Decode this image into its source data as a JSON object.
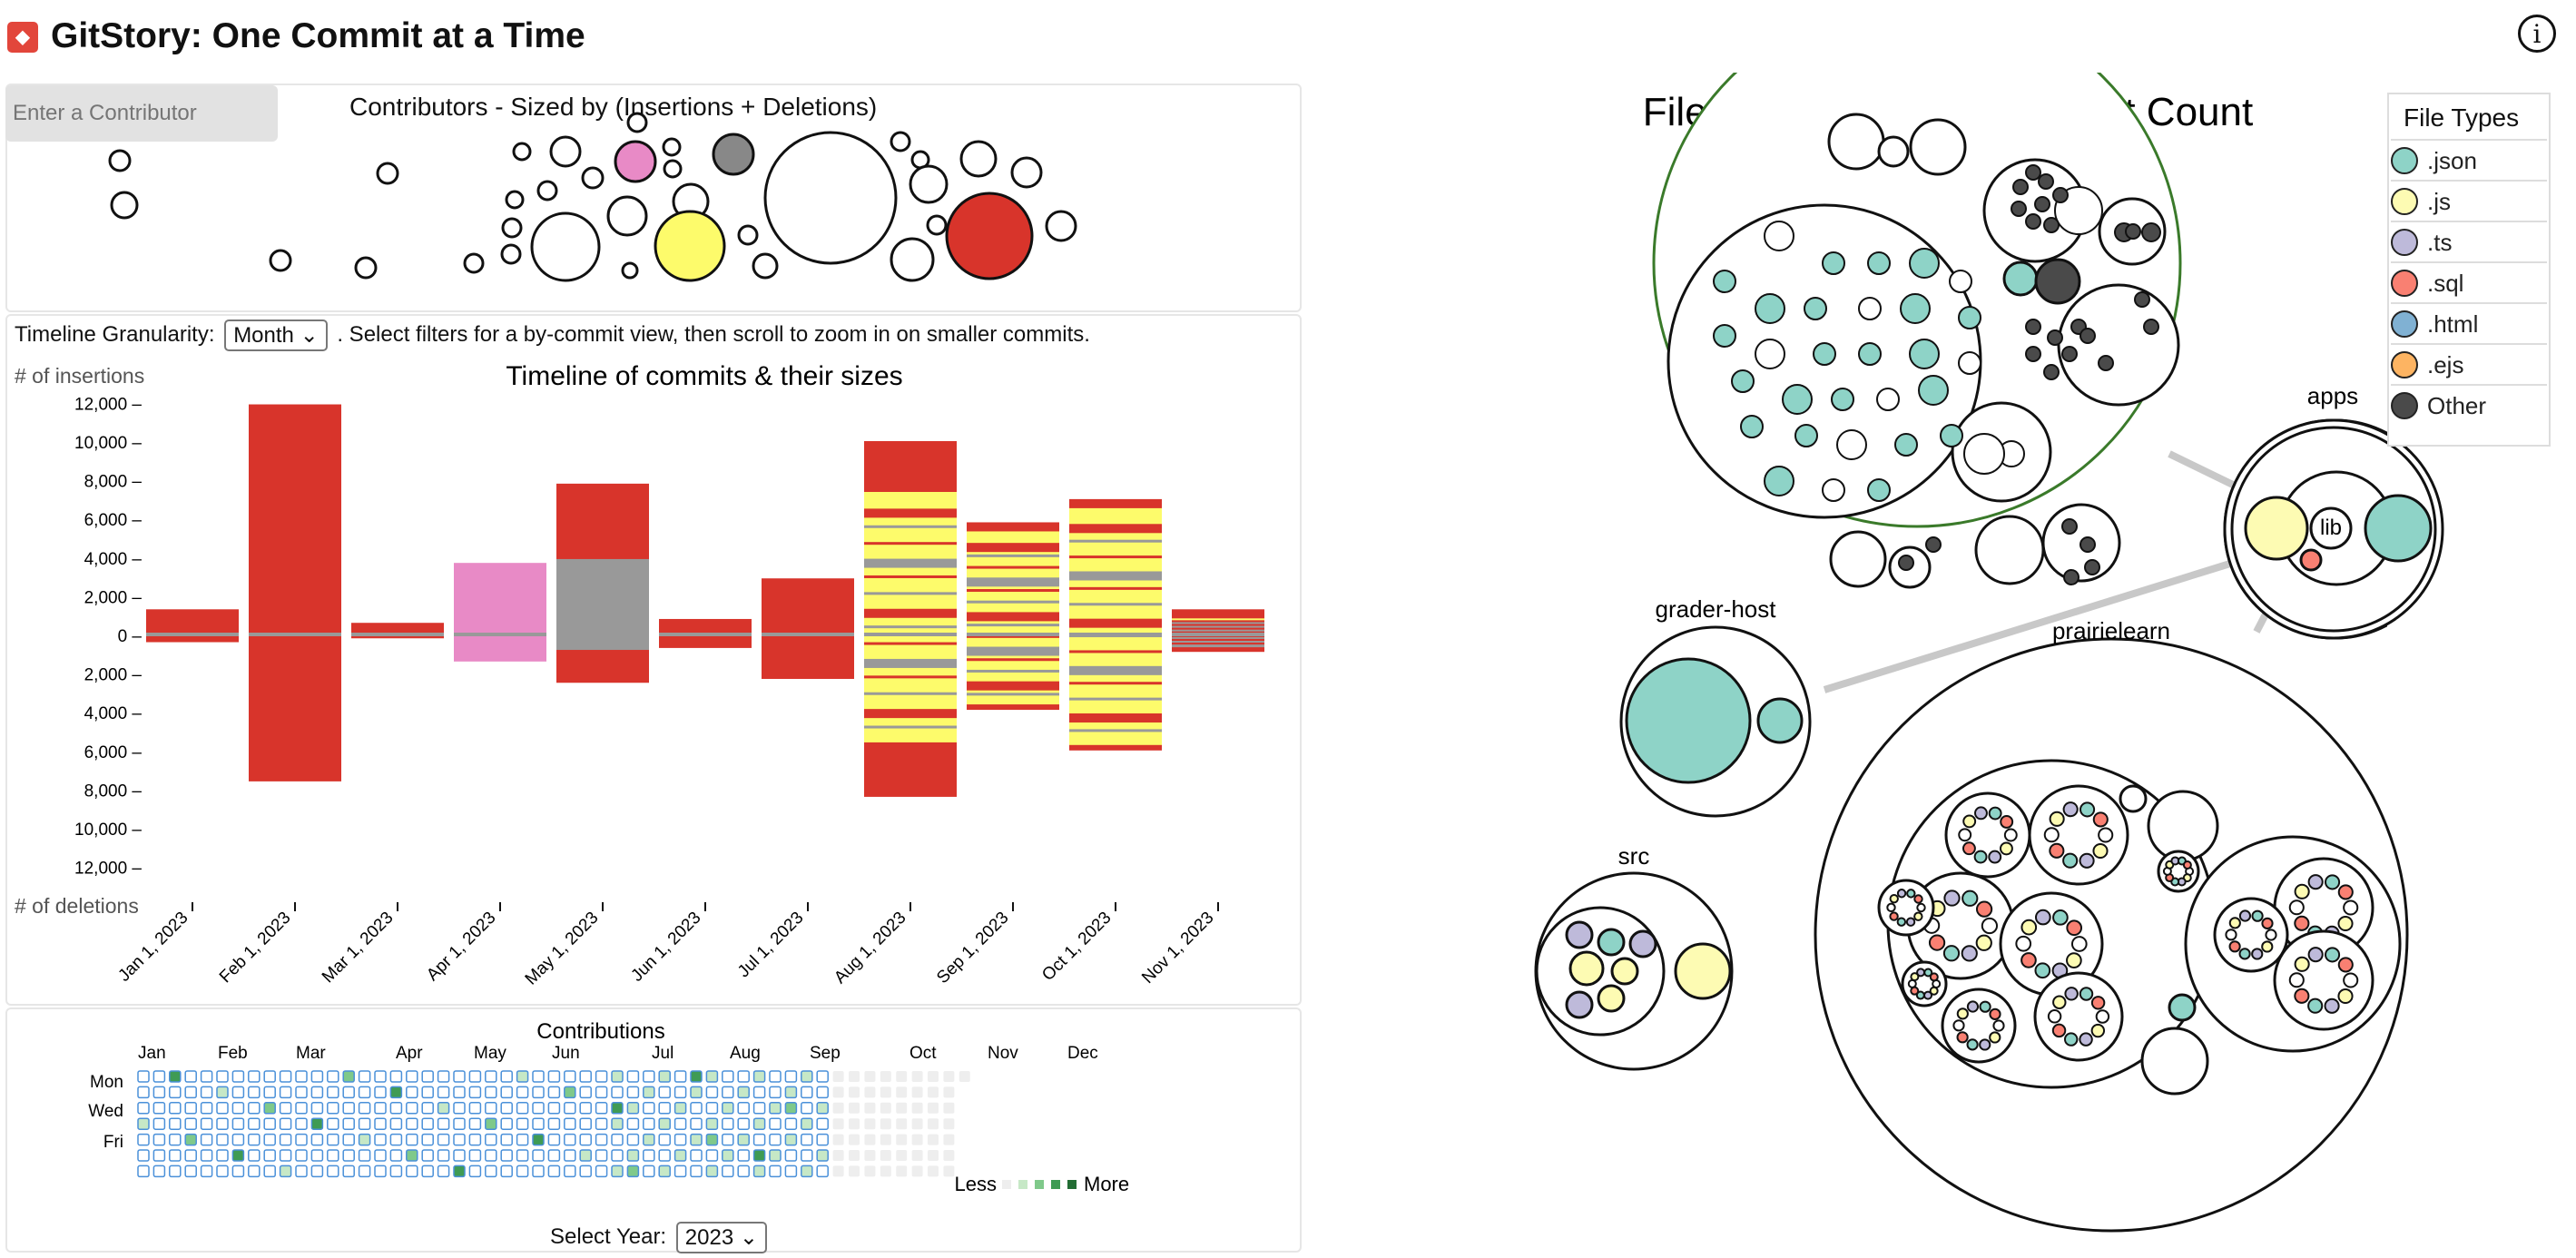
{
  "app": {
    "title": "GitStory: One Commit at a Time",
    "logo_icon": "git-logo-icon",
    "info_icon": "info-icon",
    "info_glyph": "i"
  },
  "contributors": {
    "input_placeholder": "Enter a Contributor",
    "title": "Contributors - Sized by (Insertions + Deletions)"
  },
  "timeline": {
    "granularity_label": "Timeline Granularity:",
    "granularity_value": "Month",
    "instructions": ". Select filters for a by-commit view, then scroll to zoom in on smaller commits."
  },
  "chart_data": {
    "type": "bar",
    "title": "Timeline of commits & their sizes",
    "ylabel_top": "# of insertions",
    "ylabel_bottom": "# of deletions",
    "categories": [
      "Jan 1, 2023",
      "Feb 1, 2023",
      "Mar 1, 2023",
      "Apr 1, 2023",
      "May 1, 2023",
      "Jun 1, 2023",
      "Jul 1, 2023",
      "Aug 1, 2023",
      "Sep 1, 2023",
      "Oct 1, 2023",
      "Nov 1, 2023"
    ],
    "y_ticks": [
      "12,000",
      "10,000",
      "8,000",
      "6,000",
      "4,000",
      "2,000",
      "0",
      "2,000",
      "4,000",
      "6,000",
      "8,000",
      "10,000",
      "12,000"
    ],
    "ylim": [
      -12000,
      12000
    ],
    "insertions": [
      1300,
      11900,
      600,
      3700,
      7800,
      800,
      2900,
      10000,
      5800,
      7000,
      1300
    ],
    "deletions": [
      400,
      7600,
      200,
      1400,
      2500,
      700,
      2300,
      8400,
      3900,
      6000,
      900
    ],
    "colors": {
      "red": "#d8342b",
      "yellow": "#fdfb6b",
      "pink": "#e88ac6",
      "gray": "#999999"
    }
  },
  "calendar": {
    "title": "Contributions",
    "months": [
      "Jan",
      "Feb",
      "Mar",
      "Apr",
      "May",
      "Jun",
      "Jul",
      "Aug",
      "Sep",
      "Oct",
      "Nov",
      "Dec"
    ],
    "days": [
      "Mon",
      "Wed",
      "Fri"
    ],
    "less_label": "Less",
    "more_label": "More",
    "year_label": "Select Year:",
    "year_value": "2023"
  },
  "file_tree": {
    "title": "File Tree - Sized by Commit Count",
    "labels": {
      "apps": "apps",
      "lib": "lib",
      "grader_host": "grader-host",
      "src": "src",
      "prairielearn": "prairielearn"
    }
  },
  "legend": {
    "title": "File Types",
    "items": [
      {
        "label": ".json",
        "color": "#8ed3c7"
      },
      {
        "label": ".js",
        "color": "#fdfbb3"
      },
      {
        "label": ".ts",
        "color": "#bebada"
      },
      {
        "label": ".sql",
        "color": "#f98072"
      },
      {
        "label": ".html",
        "color": "#80b1d3"
      },
      {
        "label": ".ejs",
        "color": "#fdb462"
      },
      {
        "label": "Other",
        "color": "#4a4a4a"
      }
    ]
  }
}
